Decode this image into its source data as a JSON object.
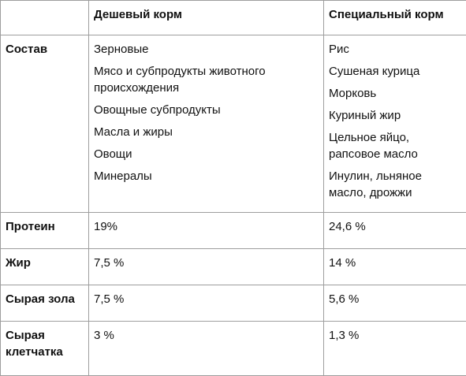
{
  "table": {
    "headers": [
      "",
      "Дешевый корм",
      "Специальный корм"
    ],
    "composition": {
      "label": "Состав",
      "cheap": [
        "Зерновые",
        "Мясо и субпродукты животного происхождения",
        "Овощные субпродукты",
        "Масла и жиры",
        "Овощи",
        "Минералы"
      ],
      "special": [
        "Рис",
        "Сушеная курица",
        "Морковь",
        "Куриный жир",
        "Цельное яйцо, рапсовое масло",
        "Инулин, льняное масло, дрожжи"
      ]
    },
    "rows": [
      {
        "label": "Протеин",
        "cheap": "19%",
        "special": "24,6 %"
      },
      {
        "label": "Жир",
        "cheap": "7,5 %",
        "special": "14 %"
      },
      {
        "label": "Сырая зола",
        "cheap": "7,5 %",
        "special": "5,6 %"
      },
      {
        "label": "Сырая клетчатка",
        "cheap": "3 %",
        "special": "1,3 %"
      }
    ]
  }
}
